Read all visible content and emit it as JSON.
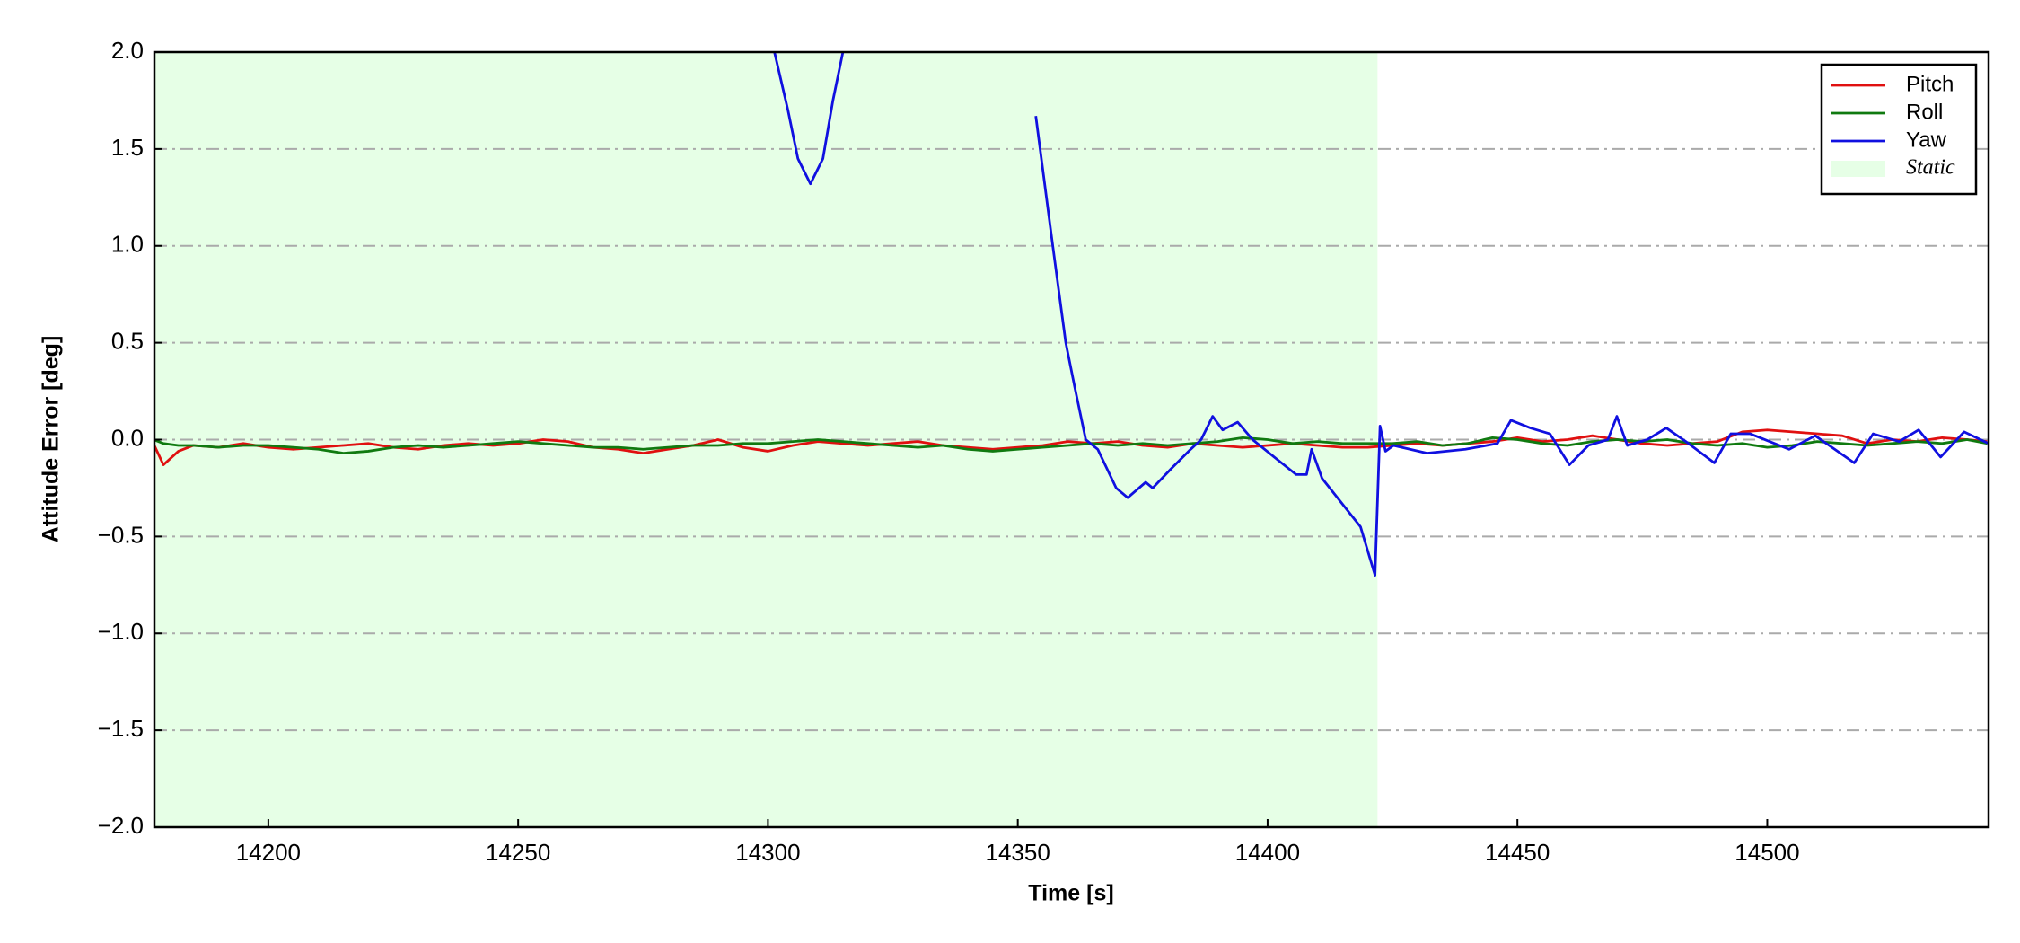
{
  "chart_data": {
    "type": "line",
    "xlabel": "Time [s]",
    "ylabel": "Attitude Error [deg]",
    "xlim": [
      14177.2,
      14544.3
    ],
    "ylim": [
      -2,
      2
    ],
    "xticks": [
      14200,
      14250,
      14300,
      14350,
      14400,
      14450,
      14500
    ],
    "yticks": [
      {
        "value": -2,
        "label": "−2.0"
      },
      {
        "value": -1.5,
        "label": "−1.5"
      },
      {
        "value": -1,
        "label": "−1.0"
      },
      {
        "value": -0.5,
        "label": "−0.5"
      },
      {
        "value": 0,
        "label": "0.0"
      },
      {
        "value": 0.5,
        "label": "0.5"
      },
      {
        "value": 1,
        "label": "1.0"
      },
      {
        "value": 1.5,
        "label": "1.5"
      },
      {
        "value": 2,
        "label": "2.0"
      }
    ],
    "grid": true,
    "legend": "upper right",
    "static_region": {
      "name": "Static",
      "start": 14177.2,
      "end": 14422,
      "color": "#e6ffe6"
    },
    "x": [
      14177,
      14179,
      14182,
      14185,
      14190,
      14195,
      14200,
      14205,
      14210,
      14215,
      14220,
      14225,
      14230,
      14235,
      14240,
      14245,
      14250,
      14255,
      14260,
      14265,
      14270,
      14275,
      14280,
      14285,
      14290,
      14295,
      14300,
      14305,
      14310,
      14315,
      14320,
      14325,
      14330,
      14335,
      14340,
      14345,
      14350,
      14355,
      14360,
      14365,
      14370,
      14375,
      14380,
      14385,
      14390,
      14395,
      14400,
      14405,
      14410,
      14415,
      14420,
      14425,
      14430,
      14435,
      14440,
      14445,
      14450,
      14455,
      14460,
      14465,
      14470,
      14475,
      14480,
      14485,
      14490,
      14495,
      14500,
      14505,
      14510,
      14515,
      14520,
      14525,
      14530,
      14535,
      14540,
      14544
    ],
    "series": [
      {
        "name": "Pitch",
        "color": "#e01010",
        "values": [
          -0.02,
          -0.13,
          -0.06,
          -0.03,
          -0.04,
          -0.02,
          -0.04,
          -0.05,
          -0.04,
          -0.03,
          -0.02,
          -0.04,
          -0.05,
          -0.03,
          -0.02,
          -0.03,
          -0.02,
          0.0,
          -0.01,
          -0.04,
          -0.05,
          -0.07,
          -0.05,
          -0.03,
          0.0,
          -0.04,
          -0.06,
          -0.03,
          -0.01,
          -0.02,
          -0.03,
          -0.02,
          -0.01,
          -0.03,
          -0.04,
          -0.05,
          -0.04,
          -0.03,
          -0.01,
          -0.02,
          -0.01,
          -0.03,
          -0.04,
          -0.02,
          -0.03,
          -0.04,
          -0.03,
          -0.02,
          -0.03,
          -0.04,
          -0.04,
          -0.03,
          -0.02,
          -0.03,
          -0.02,
          -0.01,
          0.01,
          -0.01,
          0.0,
          0.02,
          0.0,
          -0.02,
          -0.03,
          -0.02,
          -0.01,
          0.04,
          0.05,
          0.04,
          0.03,
          0.02,
          -0.02,
          0.0,
          -0.01,
          0.01,
          0.0,
          -0.01
        ]
      },
      {
        "name": "Roll",
        "color": "#107a10",
        "values": [
          0.0,
          -0.02,
          -0.03,
          -0.03,
          -0.04,
          -0.03,
          -0.03,
          -0.04,
          -0.05,
          -0.07,
          -0.06,
          -0.04,
          -0.03,
          -0.04,
          -0.03,
          -0.02,
          -0.01,
          -0.02,
          -0.03,
          -0.04,
          -0.04,
          -0.05,
          -0.04,
          -0.03,
          -0.03,
          -0.02,
          -0.02,
          -0.01,
          0.0,
          -0.01,
          -0.02,
          -0.03,
          -0.04,
          -0.03,
          -0.05,
          -0.06,
          -0.05,
          -0.04,
          -0.03,
          -0.02,
          -0.03,
          -0.02,
          -0.03,
          -0.02,
          -0.01,
          0.01,
          0.0,
          -0.02,
          -0.01,
          -0.02,
          -0.02,
          -0.02,
          -0.01,
          -0.03,
          -0.02,
          0.01,
          0.0,
          -0.02,
          -0.03,
          -0.01,
          0.0,
          -0.01,
          0.0,
          -0.02,
          -0.03,
          -0.02,
          -0.04,
          -0.03,
          -0.01,
          -0.02,
          -0.03,
          -0.02,
          -0.01,
          -0.02,
          0.0,
          -0.02
        ]
      },
      {
        "name": "Yaw",
        "color": "#1010e0",
        "x": [
          14301.3,
          14304,
          14306,
          14308.5,
          14311,
          14313,
          14315,
          14350.5,
          14353.6,
          14357,
          14359.6,
          14361.4,
          14363.6,
          14366,
          14369.7,
          14372,
          14375.6,
          14377,
          14380.7,
          14384.6,
          14386.7,
          14389,
          14391,
          14394,
          14397,
          14401.8,
          14405.7,
          14407.8,
          14408.8,
          14410.9,
          14418.6,
          14421.5,
          14422.5,
          14423.6,
          14425.2,
          14431.9,
          14439.6,
          14446,
          14448.7,
          14452.6,
          14456.5,
          14460.4,
          14464.2,
          14468.1,
          14469.9,
          14472,
          14476,
          14479.8,
          14483.7,
          14489.4,
          14492.7,
          14496.6,
          14504.4,
          14509.6,
          14517.4,
          14521.2,
          14526.4,
          14530.3,
          14534.7,
          14539.4,
          14544.3
        ],
        "values": [
          2.0,
          1.7,
          1.45,
          1.32,
          1.45,
          1.75,
          2.0,
          null,
          1.67,
          1.0,
          0.5,
          0.27,
          0.0,
          -0.05,
          -0.25,
          -0.3,
          -0.22,
          -0.25,
          -0.15,
          -0.05,
          0.0,
          0.12,
          0.05,
          0.09,
          0.0,
          -0.1,
          -0.18,
          -0.18,
          -0.05,
          -0.2,
          -0.45,
          -0.7,
          0.07,
          -0.06,
          -0.03,
          -0.07,
          -0.05,
          -0.02,
          0.1,
          0.06,
          0.03,
          -0.13,
          -0.03,
          0.0,
          0.12,
          -0.03,
          0.0,
          0.06,
          -0.01,
          -0.12,
          0.03,
          0.03,
          -0.05,
          0.02,
          -0.12,
          0.03,
          -0.01,
          0.05,
          -0.09,
          0.04,
          -0.02
        ]
      }
    ]
  }
}
